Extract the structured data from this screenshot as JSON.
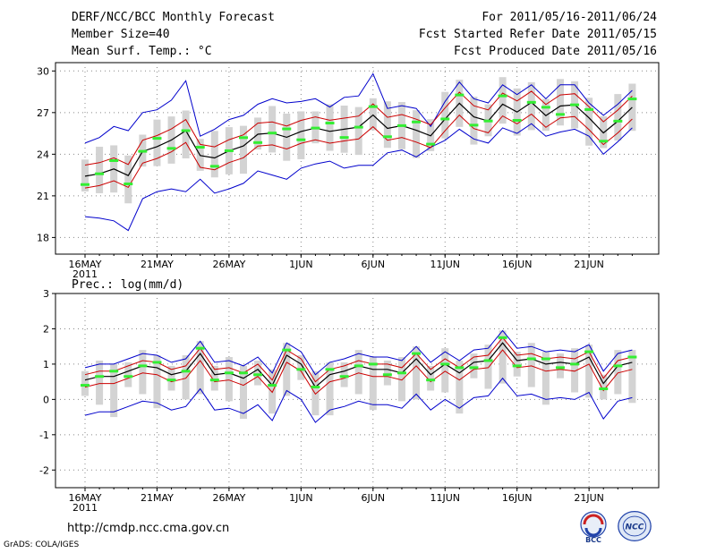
{
  "header": {
    "title": "DERF/NCC/BCC Monthly Forecast",
    "member_size": "Member Size=40",
    "variable": "Mean Surf. Temp.: °C",
    "period": "For 2011/05/16-2011/06/24",
    "start_date": "Fcst Started Refer Date 2011/05/15",
    "produced_date": "Fcst Produced Date 2011/05/16"
  },
  "footer": {
    "url": "http://cmdp.ncc.cma.gov.cn",
    "grads": "GrADS: COLA/IGES",
    "logo_bcc": "BCC",
    "logo_ncc": "NCC"
  },
  "colors": {
    "envelope": "#0000cc",
    "spread": "#cc0000",
    "mean": "#000000",
    "box": "#d3d3d3",
    "marker": "#33ee33",
    "grid": "#888888"
  },
  "chart_data": [
    {
      "type": "line",
      "title": "Mean Surf. Temp.: °C",
      "x_tick_labels": [
        "16MAY",
        "21MAY",
        "26MAY",
        "1JUN",
        "6JUN",
        "11JUN",
        "16JUN",
        "21JUN"
      ],
      "x_tick_days": [
        1,
        6,
        11,
        16,
        21,
        26,
        31,
        36
      ],
      "x_sub_label": "2011",
      "ylim": [
        16.8,
        30.6
      ],
      "yticks": [
        18,
        21,
        24,
        27,
        30
      ],
      "series": [
        {
          "name": "max",
          "values": [
            19.5,
            19.4,
            19.2,
            18.5,
            20.8,
            21.3,
            21.5,
            21.3,
            22.2,
            21.2,
            21.5,
            21.9,
            22.8,
            22.5,
            22.2,
            23.0,
            23.3,
            23.5,
            23.0,
            23.2,
            23.2,
            24.1,
            24.3,
            23.8,
            24.5,
            25.0,
            25.8,
            25.1,
            24.8,
            25.9,
            25.5,
            26.2,
            25.3,
            25.6,
            25.8,
            25.3,
            24.0,
            24.9,
            25.9
          ]
        },
        {
          "name": "min_upper",
          "values": [
            24.8,
            25.2,
            26.0,
            25.7,
            27.0,
            27.2,
            27.9,
            29.3,
            25.3,
            25.8,
            26.5,
            26.8,
            27.6,
            28.0,
            27.7,
            27.8,
            28.0,
            27.4,
            28.1,
            28.2,
            29.8,
            27.3,
            27.5,
            27.3,
            26.0,
            27.8,
            29.2,
            28.0,
            27.7,
            29.0,
            28.3,
            29.0,
            28.0,
            29.0,
            29.0,
            27.7,
            26.8,
            27.6,
            28.6
          ]
        }
      ]
    },
    {
      "type": "line",
      "title": "Prec.: log(mm/d)",
      "x_tick_labels": [
        "16MAY",
        "21MAY",
        "26MAY",
        "1JUN",
        "6JUN",
        "11JUN",
        "16JUN",
        "21JUN"
      ],
      "x_tick_days": [
        1,
        6,
        11,
        16,
        21,
        26,
        31,
        36
      ],
      "x_sub_label": "2011",
      "ylim": [
        -2.5,
        3.0
      ],
      "yticks": [
        -2,
        -1,
        0,
        1,
        2,
        3
      ],
      "series": [
        {
          "name": "ens_mean",
          "values": [
            0.55,
            0.65,
            0.65,
            0.8,
            0.95,
            0.9,
            0.7,
            0.8,
            1.3,
            0.7,
            0.75,
            0.6,
            0.85,
            0.4,
            1.25,
            1.0,
            0.35,
            0.7,
            0.8,
            0.95,
            0.85,
            0.85,
            0.75,
            1.15,
            0.7,
            1.0,
            0.75,
            1.05,
            1.1,
            1.6,
            1.1,
            1.15,
            1.0,
            1.05,
            1.0,
            1.2,
            0.45,
            0.95,
            1.05
          ]
        }
      ]
    }
  ]
}
